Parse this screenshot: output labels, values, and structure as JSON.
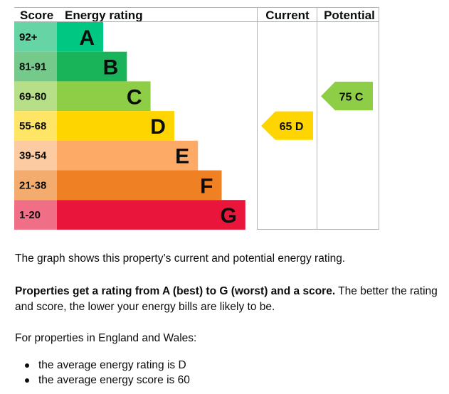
{
  "table": {
    "headers": {
      "score": "Score",
      "energy_rating": "Energy rating",
      "current": "Current",
      "potential": "Potential"
    },
    "bands": [
      {
        "range": "92+",
        "letter": "A",
        "color": "#00c781",
        "score_bg": "#67d4a6"
      },
      {
        "range": "81-91",
        "letter": "B",
        "color": "#19b459",
        "score_bg": "#75c98a"
      },
      {
        "range": "69-80",
        "letter": "C",
        "color": "#8dce46",
        "score_bg": "#b6df88"
      },
      {
        "range": "55-68",
        "letter": "D",
        "color": "#ffd500",
        "score_bg": "#ffe566"
      },
      {
        "range": "39-54",
        "letter": "E",
        "color": "#fcaa65",
        "score_bg": "#fdcba1"
      },
      {
        "range": "21-38",
        "letter": "F",
        "color": "#ef8023",
        "score_bg": "#f4ab6e"
      },
      {
        "range": "1-20",
        "letter": "G",
        "color": "#e9153b",
        "score_bg": "#f06f86"
      }
    ],
    "current": {
      "label": "65 D",
      "score": 65,
      "band": "D"
    },
    "potential": {
      "label": "75 C",
      "score": 75,
      "band": "C"
    }
  },
  "text": {
    "p1": "The graph shows this property’s current and potential energy rating.",
    "p2_bold": "Properties get a rating from A (best) to G (worst) and a score.",
    "p2_rest": " The better the rating and score, the lower your energy bills are likely to be.",
    "p3": "For properties in England and Wales:",
    "bullets": [
      "the average energy rating is D",
      "the average energy score is 60"
    ]
  }
}
